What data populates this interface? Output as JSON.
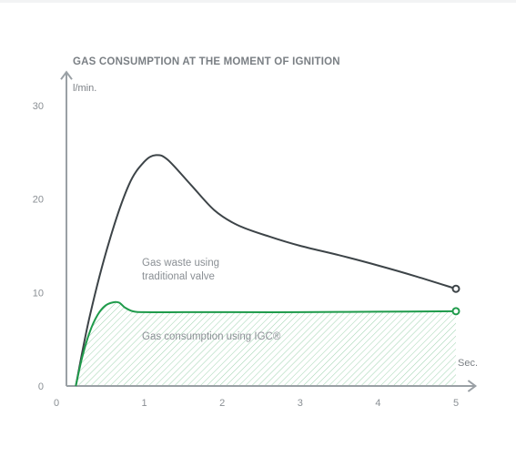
{
  "chart_data": {
    "type": "line",
    "title": "GAS CONSUMPTION AT THE MOMENT OF IGNITION",
    "y_unit_label": "l/min.",
    "x_unit_label": "Sec.",
    "xlim": [
      0,
      5.25
    ],
    "ylim": [
      0,
      33
    ],
    "x_ticks": [
      0,
      1,
      2,
      3,
      4,
      5
    ],
    "y_ticks": [
      0,
      10,
      20,
      30
    ],
    "grid": false,
    "legend": "none",
    "colors": {
      "traditional": "#3d4448",
      "igc": "#1f9b4b",
      "axis": "#9aa0a5",
      "hatch": "#9fd3b0"
    },
    "series": [
      {
        "key": "traditional",
        "x": [
          0.12,
          0.3,
          0.55,
          0.8,
          1.0,
          1.15,
          1.3,
          1.6,
          1.9,
          2.2,
          2.6,
          3.0,
          3.5,
          4.0,
          4.5,
          5.0
        ],
        "y": [
          0,
          7.5,
          15.5,
          21.5,
          24.0,
          24.7,
          24.2,
          21.5,
          18.8,
          17.2,
          16.0,
          15.0,
          14.0,
          12.9,
          11.7,
          10.4
        ]
      },
      {
        "key": "igc",
        "x": [
          0.12,
          0.2,
          0.3,
          0.4,
          0.5,
          0.6,
          0.68,
          0.75,
          0.85,
          1.0,
          1.5,
          2.0,
          3.0,
          4.0,
          5.0
        ],
        "y": [
          0,
          3.0,
          5.8,
          7.6,
          8.6,
          8.95,
          8.9,
          8.4,
          8.0,
          7.9,
          7.9,
          7.9,
          7.9,
          7.95,
          8.0
        ]
      }
    ],
    "annotations": [
      {
        "lines": [
          "Gas waste using",
          "traditional valve"
        ]
      },
      {
        "lines": [
          "Gas consumption using IGC®"
        ]
      }
    ]
  }
}
